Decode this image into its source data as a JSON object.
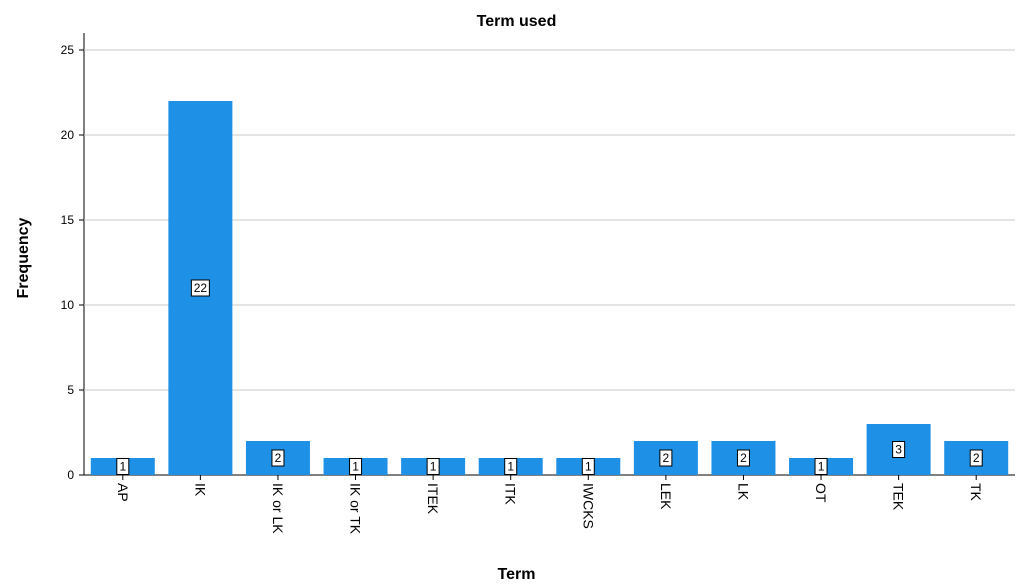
{
  "chart_data": {
    "type": "bar",
    "title": "Term used",
    "xlabel": "Term",
    "ylabel": "Frequency",
    "categories": [
      "AP",
      "IK",
      "IK or LK",
      "IK or TK",
      "ITEK",
      "ITK",
      "IWCKS",
      "LEK",
      "LK",
      "OT",
      "TEK",
      "TK"
    ],
    "values": [
      1,
      22,
      2,
      1,
      1,
      1,
      1,
      2,
      2,
      1,
      3,
      2
    ],
    "data_labels": [
      "1",
      "22",
      "2",
      "1",
      "1",
      "1",
      "1",
      "2",
      "2",
      "1",
      "3",
      "2"
    ],
    "yticks": [
      "0",
      "5",
      "10",
      "15",
      "20",
      "25"
    ],
    "ylim": [
      0,
      26
    ],
    "grid": true,
    "bar_color": "#1E90E6"
  }
}
